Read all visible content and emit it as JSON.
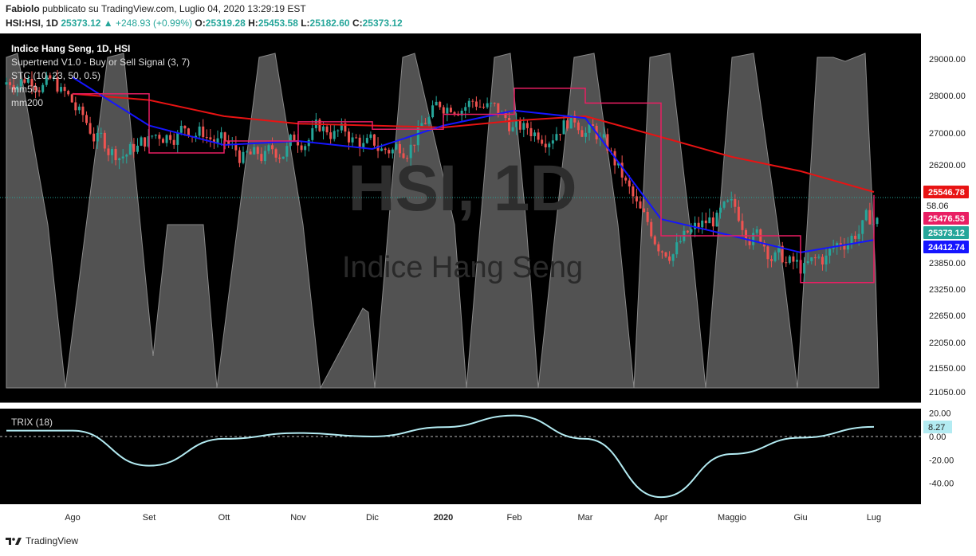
{
  "header": {
    "author": "Fabiolo",
    "published": "pubblicato su TradingView.com, Luglio 04, 2020 13:29:19 EST",
    "symbol": "HSI:HSI, 1D",
    "last": "25373.12",
    "change": "▲ +248.93 (+0.99%)",
    "o_label": "O:",
    "o": "25319.28",
    "h_label": "H:",
    "h": "25453.58",
    "l_label": "L:",
    "l": "25182.60",
    "c_label": "C:",
    "c": "25373.12"
  },
  "legend": {
    "title": "Indice Hang Seng, 1D, HSI",
    "supertrend": "Supertrend V1.0 - Buy or Sell Signal (3, 7)",
    "stc": "STC (10, 23, 50, 0.5)",
    "mm50": "mm50",
    "mm200": "mm200",
    "trix": "TRIX (18)"
  },
  "watermark": {
    "symbol": "HSI, 1D",
    "name": "Indice Hang Seng"
  },
  "footer": {
    "brand": "TradingView"
  },
  "colors": {
    "background": "#000000",
    "up": "#26a69a",
    "down": "#ef5350",
    "mm50": "#1515ff",
    "mm200": "#e81313",
    "supertrend_up": "#4caf50",
    "supertrend_down": "#e91e63",
    "stc_fill": "#6e6e6e",
    "trix": "#b3ebf2"
  },
  "chart_data": {
    "type": "line",
    "title": "Indice Hang Seng, 1D, HSI",
    "x": [
      "Ago",
      "Set",
      "Ott",
      "Nov",
      "Dic",
      "2020",
      "Feb",
      "Mar",
      "Apr",
      "Maggio",
      "Giu",
      "Lug"
    ],
    "price_ticks": [
      29000.0,
      28000.0,
      27000.0,
      26200.0,
      25546.78,
      23850.0,
      23250.0,
      22650.0,
      22050.0,
      21550.0,
      21050.0
    ],
    "price_axis_labels": [
      "29000.00",
      "28000.00",
      "27000.00",
      "26200.00",
      "23850.00",
      "23250.00",
      "22650.00",
      "22050.00",
      "21550.00",
      "21050.00"
    ],
    "stc_axis_label": "58.06",
    "price_tags": [
      {
        "label": "25546.78",
        "value": 25546.78,
        "series": "mm200",
        "color": "#e81313"
      },
      {
        "label": "25476.53",
        "value": 25476.53,
        "series": "Supertrend",
        "color": "#e91e63"
      },
      {
        "label": "25373.12",
        "value": 25373.12,
        "series": "close",
        "color": "#26a69a"
      },
      {
        "label": "24412.74",
        "value": 24412.74,
        "series": "mm50",
        "color": "#1515ff"
      }
    ],
    "trix_axis_labels": [
      "20.00",
      "0.00",
      "-20.00",
      "-40.00"
    ],
    "trix_last": "8.27",
    "trix_ylim": [
      -57,
      25
    ],
    "series": [
      {
        "name": "mm200",
        "values": [
          28050,
          27880,
          27450,
          27250,
          27200,
          27150,
          27330,
          27450,
          26900,
          26400,
          26050,
          25550
        ]
      },
      {
        "name": "mm50",
        "values": [
          28500,
          27200,
          26700,
          26800,
          26600,
          27200,
          27600,
          27400,
          24900,
          24500,
          24100,
          24400
        ]
      },
      {
        "name": "Supertrend",
        "values": [
          28050,
          26500,
          26800,
          27300,
          27100,
          27500,
          28200,
          27800,
          24500,
          24500,
          23400,
          25476
        ]
      },
      {
        "name": "TRIX (18)",
        "values": [
          5,
          -25,
          -2,
          3,
          0,
          8,
          18,
          -2,
          -52,
          -15,
          -1,
          8.27
        ]
      },
      {
        "name": "STC (10, 23, 50, 0.5)",
        "values": [
          100,
          0,
          100,
          0,
          100,
          0,
          100,
          0,
          100,
          0,
          100,
          58.06
        ]
      }
    ]
  }
}
